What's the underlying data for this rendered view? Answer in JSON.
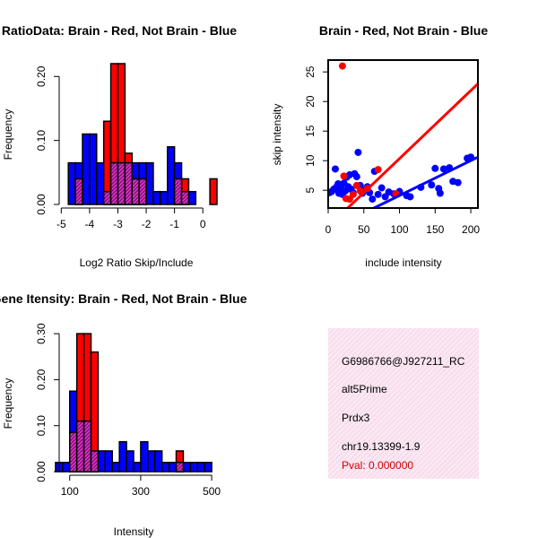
{
  "colors": {
    "red": "#ff0000",
    "blue": "#0000ff",
    "purple": "#9933cc",
    "box": "#f8e1ee",
    "pval": "#cc0000"
  },
  "chart_data": [
    {
      "type": "bar",
      "title": "RatioData: Brain - Red, Not Brain - Blue",
      "xlabel": "Log2 Ratio Skip/Include",
      "ylabel": "Frequency",
      "xlim": [
        -5.2,
        0.5
      ],
      "ylim": [
        0,
        0.22
      ],
      "xticks": [
        -5,
        -4,
        -3,
        -2,
        -1,
        0
      ],
      "yticks": [
        0.0,
        0.1,
        0.2
      ],
      "ytick_labels": [
        "0.00",
        "0.10",
        "0.20"
      ],
      "bin_starts": [
        -4.75,
        -4.5,
        -4.25,
        -4.0,
        -3.75,
        -3.5,
        -3.25,
        -3.0,
        -2.75,
        -2.5,
        -2.25,
        -2.0,
        -1.75,
        -1.5,
        -1.25,
        -1.0,
        -0.75,
        -0.5,
        -0.25,
        0.0,
        0.25
      ],
      "bin_width": 0.25,
      "series": [
        {
          "name": "Not Brain",
          "color": "blue",
          "values": [
            0.065,
            0.065,
            0.11,
            0.11,
            0.065,
            0.02,
            0.065,
            0.065,
            0.065,
            0.065,
            0.065,
            0.065,
            0.02,
            0.02,
            0.09,
            0.065,
            0.02,
            0.02,
            0,
            0,
            0
          ]
        },
        {
          "name": "Brain",
          "color": "red",
          "values": [
            0,
            0.04,
            0,
            0,
            0,
            0.13,
            0.22,
            0.22,
            0.08,
            0.04,
            0.04,
            0,
            0,
            0,
            0,
            0.04,
            0.04,
            0,
            0,
            0,
            0.04
          ]
        }
      ]
    },
    {
      "type": "scatter",
      "title": "Brain - Red, Not Brain - Blue",
      "xlabel": "include intensity",
      "ylabel": "skip intensity",
      "xlim": [
        0,
        210
      ],
      "ylim": [
        2,
        27
      ],
      "xticks": [
        0,
        50,
        100,
        150,
        200
      ],
      "yticks": [
        5,
        10,
        15,
        20,
        25
      ],
      "series": [
        {
          "name": "Not Brain",
          "color": "blue",
          "points": [
            [
              2,
              4.6
            ],
            [
              5,
              4.8
            ],
            [
              8,
              5.2
            ],
            [
              10,
              8.6
            ],
            [
              12,
              5.6
            ],
            [
              14,
              6.1
            ],
            [
              15,
              4.5
            ],
            [
              16,
              5
            ],
            [
              18,
              5.8
            ],
            [
              20,
              4.3
            ],
            [
              22,
              6.2
            ],
            [
              24,
              4.9
            ],
            [
              26,
              7.2
            ],
            [
              28,
              5.6
            ],
            [
              30,
              7.6
            ],
            [
              32,
              5.2
            ],
            [
              35,
              4.6
            ],
            [
              37,
              7.8
            ],
            [
              40,
              7.3
            ],
            [
              42,
              11.4
            ],
            [
              45,
              5.8
            ],
            [
              48,
              4.5
            ],
            [
              52,
              5.1
            ],
            [
              55,
              5.6
            ],
            [
              58,
              4.6
            ],
            [
              62,
              3.5
            ],
            [
              65,
              8.2
            ],
            [
              70,
              4.3
            ],
            [
              75,
              5.4
            ],
            [
              80,
              3.9
            ],
            [
              85,
              4.7
            ],
            [
              92,
              4.4
            ],
            [
              100,
              4.8
            ],
            [
              110,
              4.1
            ],
            [
              115,
              3.9
            ],
            [
              130,
              5.5
            ],
            [
              145,
              5.9
            ],
            [
              150,
              8.7
            ],
            [
              155,
              5.3
            ],
            [
              157,
              4.5
            ],
            [
              162,
              8.6
            ],
            [
              170,
              8.8
            ],
            [
              175,
              6.5
            ],
            [
              182,
              6.3
            ],
            [
              195,
              10.4
            ],
            [
              200,
              10.6
            ]
          ]
        },
        {
          "name": "Brain",
          "color": "red",
          "points": [
            [
              20,
              26
            ],
            [
              22,
              7.4
            ],
            [
              25,
              3.6
            ],
            [
              30,
              3.5
            ],
            [
              35,
              4.3
            ],
            [
              40,
              5.8
            ],
            [
              45,
              4.9
            ],
            [
              55,
              5.3
            ],
            [
              70,
              8.5
            ],
            [
              95,
              4.4
            ]
          ]
        }
      ],
      "fits": [
        {
          "color": "red",
          "x": [
            10,
            210
          ],
          "y": [
            0,
            23
          ]
        },
        {
          "color": "blue",
          "x": [
            10,
            210
          ],
          "y": [
            -1.2,
            10.6
          ]
        }
      ]
    },
    {
      "type": "bar",
      "title": "Gene Itensity: Brain - Red, Not Brain - Blue",
      "xlabel": "Intensity",
      "ylabel": "Frequency",
      "xlim": [
        40,
        520
      ],
      "ylim": [
        0,
        0.31
      ],
      "xticks": [
        100,
        300,
        500
      ],
      "yticks": [
        0.0,
        0.1,
        0.2,
        0.3
      ],
      "ytick_labels": [
        "0.00",
        "0.10",
        "0.20",
        "0.30"
      ],
      "bin_starts": [
        60,
        80,
        100,
        120,
        140,
        160,
        180,
        200,
        220,
        240,
        260,
        280,
        300,
        320,
        340,
        360,
        380,
        400,
        420,
        440,
        460,
        480
      ],
      "bin_width": 20,
      "series": [
        {
          "name": "Not Brain",
          "color": "blue",
          "values": [
            0.02,
            0.02,
            0.175,
            0.11,
            0.11,
            0.045,
            0.045,
            0.045,
            0.02,
            0.065,
            0.045,
            0.02,
            0.065,
            0.045,
            0.045,
            0.02,
            0.02,
            0.02,
            0.02,
            0.02,
            0.02,
            0.02
          ]
        },
        {
          "name": "Brain",
          "color": "red",
          "values": [
            0,
            0,
            0.085,
            0.3,
            0.3,
            0.26,
            0,
            0,
            0,
            0,
            0,
            0,
            0,
            0,
            0,
            0,
            0,
            0.045,
            0,
            0,
            0,
            0
          ]
        }
      ]
    }
  ],
  "info": {
    "probe": "G6986766@J927211_RC",
    "event_type": "alt5Prime",
    "gene": "Prdx3",
    "location": "chr19.13399-1.9",
    "pval": "Pval: 0.000000"
  }
}
